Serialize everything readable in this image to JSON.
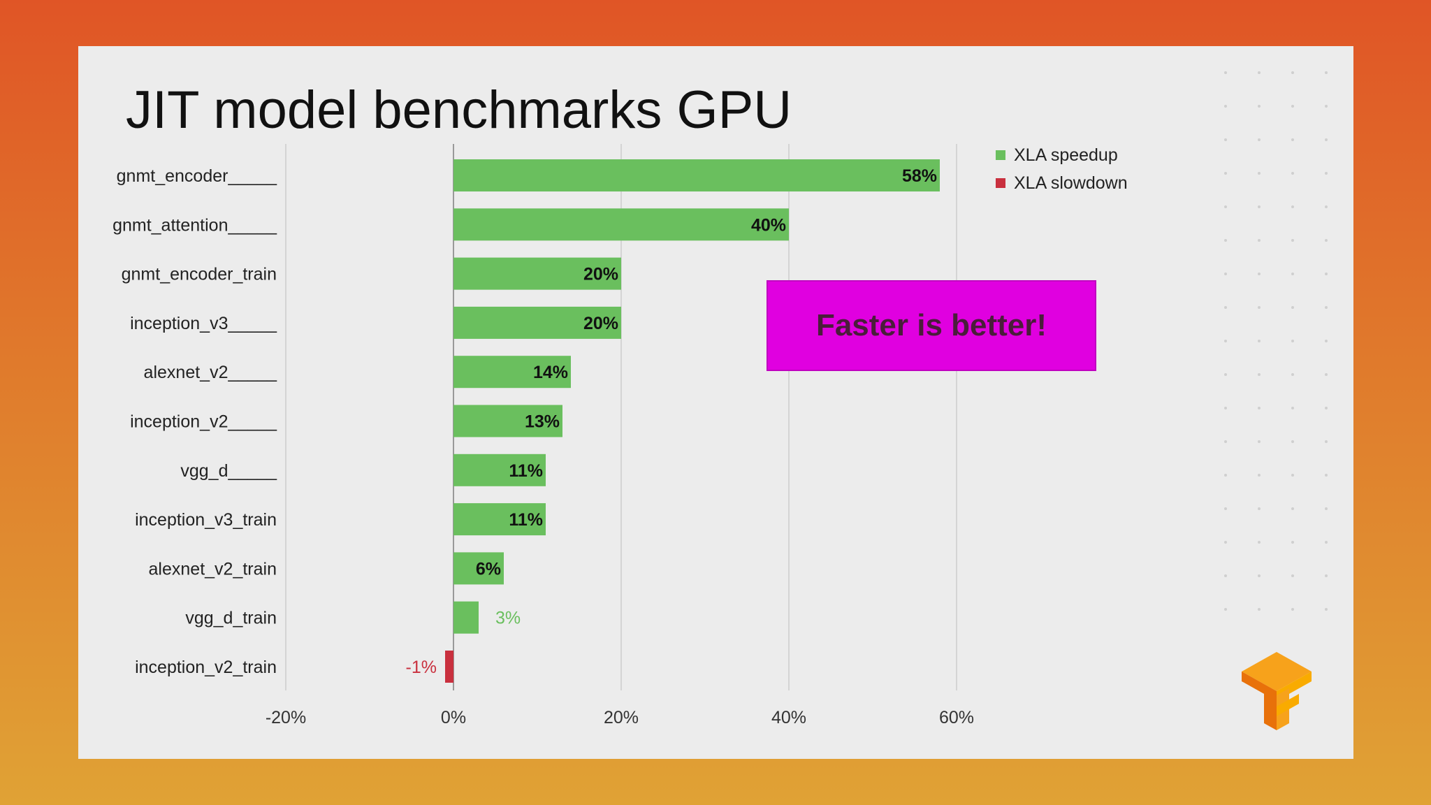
{
  "slide": {
    "title": "JIT model benchmarks GPU",
    "callout": "Faster is better!"
  },
  "logo": {
    "icon": "tensorflow-logo-icon"
  },
  "colors": {
    "speedup": "#6abf5e",
    "slowdown": "#c9303e",
    "callout": "#e000e0",
    "background": "#ececec"
  },
  "chart_data": {
    "type": "bar",
    "orientation": "horizontal",
    "categories": [
      "gnmt_encoder_____",
      "gnmt_attention_____",
      "gnmt_encoder_train",
      "inception_v3_____",
      "alexnet_v2_____",
      "inception_v2_____",
      "vgg_d_____",
      "inception_v3_train",
      "alexnet_v2_train",
      "vgg_d_train",
      "inception_v2_train"
    ],
    "values": [
      58,
      40,
      20,
      20,
      14,
      13,
      11,
      11,
      6,
      3,
      -1
    ],
    "value_labels": [
      "58%",
      "40%",
      "20%",
      "20%",
      "14%",
      "13%",
      "11%",
      "11%",
      "6%",
      "3%",
      "-1%"
    ],
    "series": [
      {
        "name": "XLA speedup",
        "color": "#6abf5e"
      },
      {
        "name": "XLA slowdown",
        "color": "#c9303e"
      }
    ],
    "title": "JIT model benchmarks GPU",
    "xlim": [
      -20,
      60
    ],
    "xticks": [
      -20,
      0,
      20,
      40,
      60
    ],
    "xtick_labels": [
      "-20%",
      "0%",
      "20%",
      "40%",
      "60%"
    ],
    "grid": true,
    "legend": "top-right"
  }
}
